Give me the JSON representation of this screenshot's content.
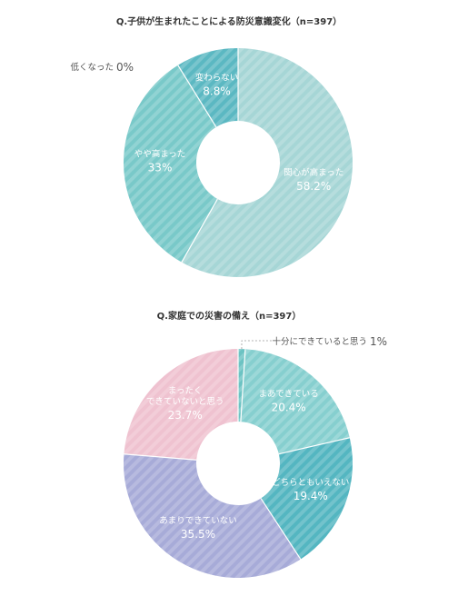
{
  "chart_data": [
    {
      "type": "pie",
      "title": "Q.子供が生まれたことによる防災意識変化（n=397）",
      "slices": [
        {
          "label": "関心が高まった",
          "value": 58.2,
          "display": "58.2%",
          "color": "#a6d6d6"
        },
        {
          "label": "やや高まった",
          "value": 33,
          "display": "33%",
          "color": "#79c9c9"
        },
        {
          "label": "変わらない",
          "value": 8.8,
          "display": "8.8%",
          "color": "#5bb8c2"
        },
        {
          "label": "低くなった",
          "value": 0,
          "display": "0%",
          "color": "#4aa9b4"
        }
      ]
    },
    {
      "type": "pie",
      "title": "Q.家庭での災害の備え（n=397）",
      "slices": [
        {
          "label": "十分にできていると思う",
          "value": 1,
          "display": "1%",
          "color": "#6cc3c3"
        },
        {
          "label": "まあできている",
          "value": 20.4,
          "display": "20.4%",
          "color": "#86cfcf"
        },
        {
          "label": "どちらともいえない",
          "value": 19.4,
          "display": "19.4%",
          "color": "#54b6c1"
        },
        {
          "label": "あまりできていない",
          "value": 35.5,
          "display": "35.5%",
          "color": "#a7abd8"
        },
        {
          "label": "まったく\nできていないと思う",
          "value": 23.7,
          "display": "23.7%",
          "color": "#efc2d0"
        }
      ]
    }
  ]
}
